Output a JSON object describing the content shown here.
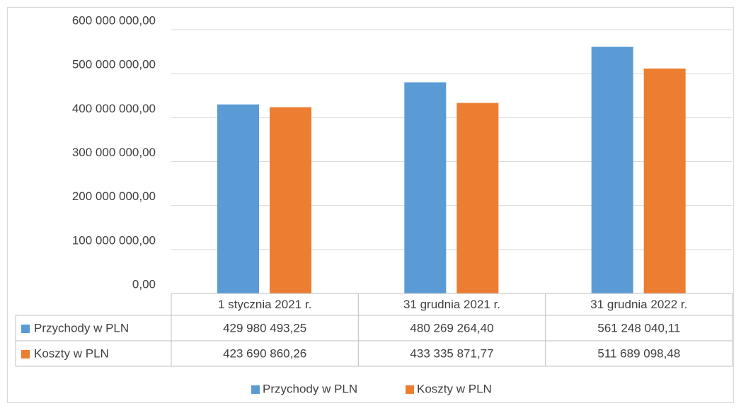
{
  "chart_data": {
    "type": "bar",
    "categories": [
      "1 stycznia 2021 r.",
      "31 grudnia 2021 r.",
      "31 grudnia 2022 r."
    ],
    "series": [
      {
        "name": "Przychody w PLN",
        "color": "#5b9bd5",
        "values": [
          429980493.25,
          480269264.4,
          561248040.11
        ],
        "value_labels": [
          "429 980 493,25",
          "480 269 264,40",
          "561 248 040,11"
        ]
      },
      {
        "name": "Koszty w PLN",
        "color": "#ed7d31",
        "values": [
          423690860.26,
          433335871.77,
          511689098.48
        ],
        "value_labels": [
          "423 690 860,26",
          "433 335 871,77",
          "511 689 098,48"
        ]
      }
    ],
    "ylim": [
      0,
      600000000
    ],
    "yticks": [
      {
        "value": 0,
        "label": "0,00"
      },
      {
        "value": 100000000,
        "label": "100 000 000,00"
      },
      {
        "value": 200000000,
        "label": "200 000 000,00"
      },
      {
        "value": 300000000,
        "label": "300 000 000,00"
      },
      {
        "value": 400000000,
        "label": "400 000 000,00"
      },
      {
        "value": 500000000,
        "label": "500 000 000,00"
      },
      {
        "value": 600000000,
        "label": "600 000 000,00"
      }
    ],
    "grid": true,
    "legend": "bottom"
  }
}
